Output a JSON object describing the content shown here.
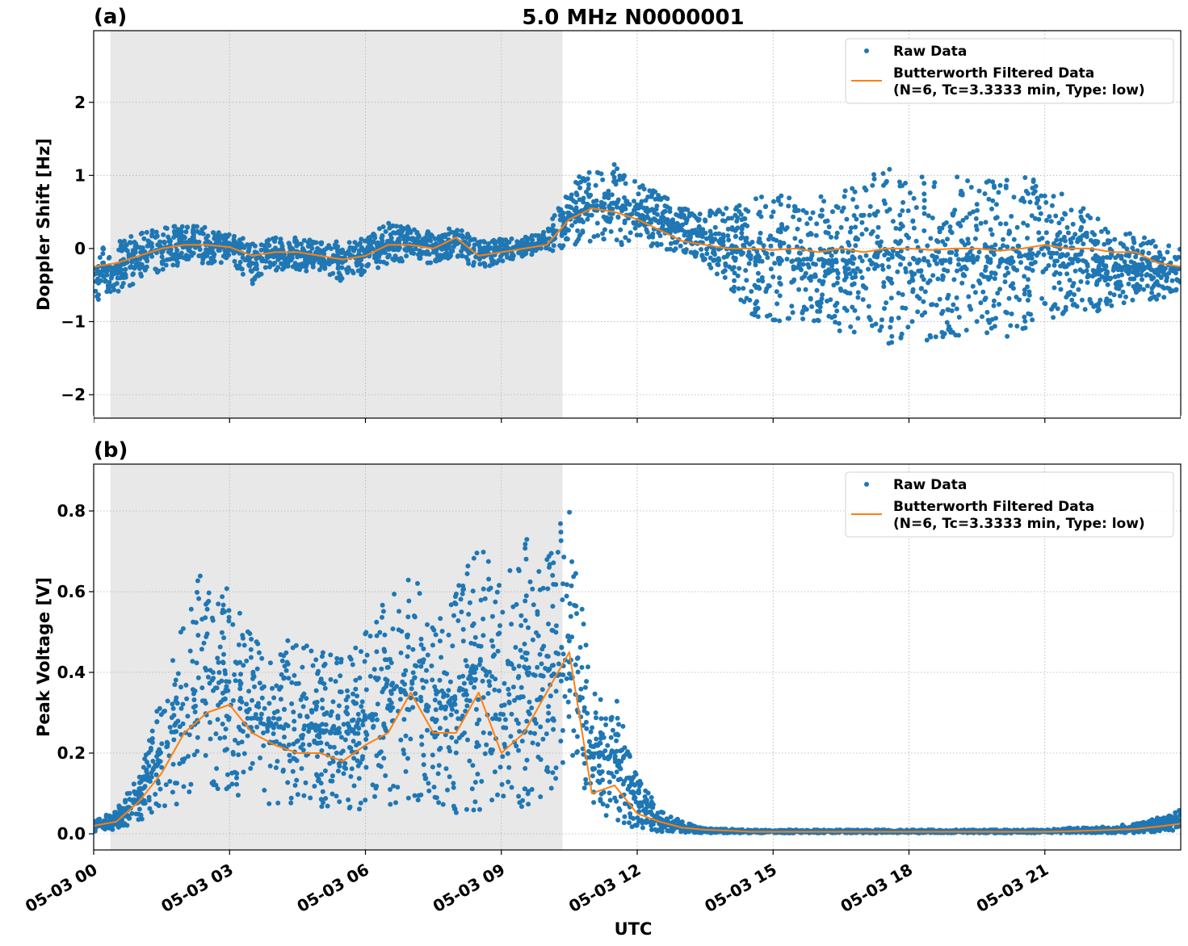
{
  "title": "5.0 MHz N0000001",
  "colors": {
    "raw": "#1f77b4",
    "filtered": "#ff7f0e",
    "shade": "#e8e8e8"
  },
  "chart_data": [
    {
      "panel_label": "(a)",
      "type": "scatter+line",
      "ylabel": "Doppler Shift [Hz]",
      "xlabel": "",
      "xlim_hours": [
        0,
        24
      ],
      "ylim": [
        -2.32,
        2.98
      ],
      "yticks": [
        -2,
        -1,
        0,
        1,
        2
      ],
      "ytick_labels": [
        "−2",
        "−1",
        "0",
        "1",
        "2"
      ],
      "grid": true,
      "legend_placement": "top-right",
      "legend": [
        "Raw Data",
        "Butterworth Filtered Data",
        "(N=6, Tc=3.3333 min, Type: low)"
      ],
      "shaded_span_hours": [
        0.37,
        10.35
      ],
      "x_hours": [
        0,
        0.5,
        1,
        1.5,
        2,
        2.5,
        3,
        3.5,
        4,
        4.5,
        5,
        5.5,
        6,
        6.5,
        7,
        7.5,
        8,
        8.5,
        9,
        9.5,
        10,
        10.5,
        11,
        11.5,
        12,
        12.5,
        13,
        13.5,
        14,
        14.5,
        15,
        15.5,
        16,
        16.5,
        17,
        17.5,
        18,
        18.5,
        19,
        19.5,
        20,
        20.5,
        21,
        21.5,
        22,
        22.5,
        23,
        23.5,
        24
      ],
      "filtered": [
        -0.25,
        -0.2,
        -0.1,
        0.0,
        0.05,
        0.05,
        0.02,
        -0.1,
        -0.05,
        -0.05,
        -0.1,
        -0.15,
        -0.1,
        0.05,
        0.05,
        0.0,
        0.15,
        -0.1,
        -0.05,
        0.0,
        0.05,
        0.4,
        0.55,
        0.5,
        0.4,
        0.25,
        0.1,
        0.05,
        0.0,
        0.0,
        -0.02,
        0.0,
        -0.05,
        0.0,
        -0.05,
        0.0,
        0.0,
        -0.02,
        0.0,
        0.0,
        -0.03,
        0.0,
        0.05,
        0.0,
        0.0,
        -0.05,
        -0.05,
        -0.2,
        -0.25
      ],
      "raw_upper": [
        0.05,
        0.1,
        0.2,
        0.3,
        0.35,
        0.3,
        0.2,
        0.1,
        0.15,
        0.15,
        0.1,
        0.1,
        0.15,
        0.35,
        0.3,
        0.25,
        0.3,
        0.1,
        0.15,
        0.15,
        0.25,
        0.9,
        1.1,
        1.2,
        0.9,
        0.75,
        0.55,
        0.5,
        0.6,
        0.7,
        0.75,
        0.7,
        0.7,
        0.8,
        1.0,
        1.1,
        1.0,
        1.0,
        1.0,
        0.9,
        1.0,
        1.0,
        0.9,
        0.7,
        0.5,
        0.3,
        0.2,
        0.1,
        0.05
      ],
      "raw_lower": [
        -0.75,
        -0.6,
        -0.45,
        -0.3,
        -0.2,
        -0.2,
        -0.2,
        -0.5,
        -0.3,
        -0.3,
        -0.35,
        -0.45,
        -0.35,
        -0.2,
        -0.2,
        -0.2,
        -0.1,
        -0.3,
        -0.2,
        -0.1,
        -0.05,
        0.0,
        0.05,
        0.05,
        0.05,
        0.0,
        -0.05,
        -0.2,
        -0.5,
        -0.9,
        -1.0,
        -1.0,
        -1.0,
        -1.2,
        -1.2,
        -1.3,
        -1.3,
        -1.3,
        -1.3,
        -1.2,
        -1.3,
        -1.2,
        -1.0,
        -0.9,
        -0.9,
        -0.8,
        -0.7,
        -0.7,
        -0.6
      ]
    },
    {
      "panel_label": "(b)",
      "type": "scatter+line",
      "ylabel": "Peak Voltage [V]",
      "xlabel": "UTC",
      "xlim_hours": [
        0,
        24
      ],
      "ylim": [
        -0.04,
        0.916
      ],
      "yticks": [
        0,
        0.2,
        0.4,
        0.6,
        0.8
      ],
      "ytick_labels": [
        "0.0",
        "0.2",
        "0.4",
        "0.6",
        "0.8"
      ],
      "xticks_hours": [
        0,
        3,
        6,
        9,
        12,
        15,
        18,
        21
      ],
      "xtick_labels": [
        "05-03 00",
        "05-03 03",
        "05-03 06",
        "05-03 09",
        "05-03 12",
        "05-03 15",
        "05-03 18",
        "05-03 21"
      ],
      "grid": true,
      "legend_placement": "top-right",
      "legend": [
        "Raw Data",
        "Butterworth Filtered Data",
        "(N=6, Tc=3.3333 min, Type: low)"
      ],
      "shaded_span_hours": [
        0.37,
        10.35
      ],
      "x_hours": [
        0,
        0.5,
        1,
        1.5,
        2,
        2.5,
        3,
        3.5,
        4,
        4.5,
        5,
        5.5,
        6,
        6.5,
        7,
        7.5,
        8,
        8.5,
        9,
        9.5,
        10,
        10.5,
        11,
        11.5,
        12,
        12.5,
        13,
        13.5,
        14,
        14.5,
        15,
        15.5,
        16,
        16.5,
        17,
        17.5,
        18,
        18.5,
        19,
        19.5,
        20,
        20.5,
        21,
        21.5,
        22,
        22.5,
        23,
        23.5,
        24
      ],
      "filtered": [
        0.02,
        0.03,
        0.08,
        0.15,
        0.25,
        0.3,
        0.32,
        0.25,
        0.22,
        0.2,
        0.2,
        0.18,
        0.22,
        0.25,
        0.35,
        0.25,
        0.25,
        0.35,
        0.2,
        0.25,
        0.35,
        0.45,
        0.1,
        0.12,
        0.05,
        0.03,
        0.015,
        0.01,
        0.008,
        0.005,
        0.005,
        0.005,
        0.005,
        0.005,
        0.005,
        0.005,
        0.005,
        0.005,
        0.005,
        0.005,
        0.005,
        0.005,
        0.005,
        0.006,
        0.008,
        0.01,
        0.012,
        0.018,
        0.025
      ],
      "raw_upper": [
        0.03,
        0.06,
        0.15,
        0.35,
        0.55,
        0.7,
        0.6,
        0.5,
        0.45,
        0.5,
        0.45,
        0.45,
        0.5,
        0.6,
        0.65,
        0.55,
        0.6,
        0.8,
        0.6,
        0.75,
        0.7,
        0.85,
        0.35,
        0.35,
        0.15,
        0.06,
        0.03,
        0.015,
        0.012,
        0.01,
        0.01,
        0.01,
        0.01,
        0.01,
        0.01,
        0.01,
        0.01,
        0.01,
        0.01,
        0.01,
        0.01,
        0.01,
        0.01,
        0.015,
        0.015,
        0.02,
        0.025,
        0.04,
        0.06
      ],
      "raw_lower": [
        0.005,
        0.01,
        0.03,
        0.05,
        0.08,
        0.1,
        0.1,
        0.08,
        0.07,
        0.07,
        0.06,
        0.06,
        0.06,
        0.07,
        0.08,
        0.06,
        0.05,
        0.06,
        0.04,
        0.05,
        0.08,
        0.15,
        0.05,
        0.03,
        0.01,
        0.005,
        0.002,
        0.002,
        0.002,
        0.002,
        0.002,
        0.002,
        0.002,
        0.002,
        0.002,
        0.002,
        0.002,
        0.002,
        0.002,
        0.002,
        0.002,
        0.002,
        0.002,
        0.002,
        0.002,
        0.002,
        0.002,
        0.005,
        0.01
      ]
    }
  ]
}
